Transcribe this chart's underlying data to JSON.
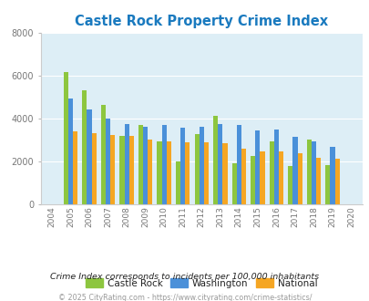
{
  "title": "Castle Rock Property Crime Index",
  "title_color": "#1a7abf",
  "years": [
    2004,
    2005,
    2006,
    2007,
    2008,
    2009,
    2010,
    2011,
    2012,
    2013,
    2014,
    2015,
    2016,
    2017,
    2018,
    2019,
    2020
  ],
  "castle_rock": [
    null,
    6200,
    5350,
    4650,
    3200,
    3700,
    2950,
    2000,
    3300,
    4150,
    1950,
    2250,
    2950,
    1800,
    3050,
    1850,
    null
  ],
  "washington": [
    null,
    4950,
    4450,
    4000,
    3750,
    3650,
    3700,
    3600,
    3650,
    3750,
    3700,
    3450,
    3500,
    3150,
    2950,
    2700,
    null
  ],
  "national": [
    null,
    3400,
    3350,
    3250,
    3200,
    3050,
    2950,
    2900,
    2900,
    2850,
    2600,
    2500,
    2500,
    2400,
    2200,
    2150,
    null
  ],
  "bar_colors": {
    "castle_rock": "#8dc63f",
    "washington": "#4a90d9",
    "national": "#f5a623"
  },
  "ylim": [
    0,
    8000
  ],
  "yticks": [
    0,
    2000,
    4000,
    6000,
    8000
  ],
  "bg_color": "#ddeef6",
  "legend_labels": [
    "Castle Rock",
    "Washington",
    "National"
  ],
  "footnote1": "Crime Index corresponds to incidents per 100,000 inhabitants",
  "footnote2": "© 2025 CityRating.com - https://www.cityrating.com/crime-statistics/",
  "footnote1_color": "#222222",
  "footnote2_color": "#999999",
  "bar_width": 0.25
}
